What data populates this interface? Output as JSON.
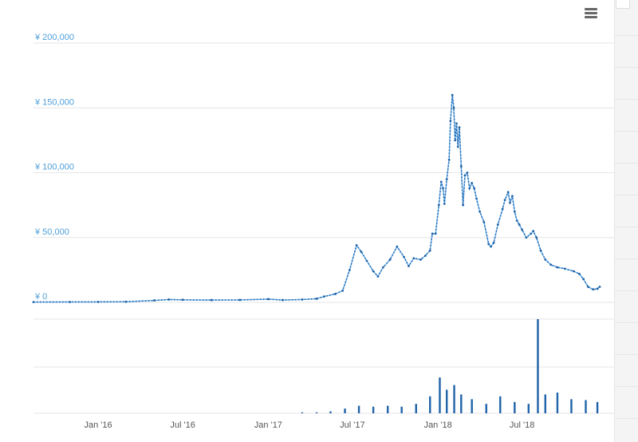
{
  "colors": {
    "line": "#1f63a8",
    "line_light": "#6aaee8",
    "volume": "#1f63a8",
    "grid": "#e6e6e6",
    "ylabel": "#4e9fd8",
    "xlabel": "#555555"
  },
  "icons": {
    "menu": "hamburger-menu-icon"
  },
  "chart_data": [
    {
      "type": "line",
      "title": "",
      "y_axis": {
        "ticks": [
          "¥ 0",
          "¥ 50,000",
          "¥ 100,000",
          "¥ 150,000",
          "¥ 200,000"
        ],
        "tick_values": [
          0,
          50000,
          100000,
          150000,
          200000
        ],
        "ylim": [
          0,
          200000
        ]
      },
      "x_axis": {
        "ticks": [
          "Jan '16",
          "Jul '16",
          "Jan '17",
          "Jul '17",
          "Jan '18",
          "Jul '18"
        ],
        "tick_dates": [
          "2016-01-01",
          "2016-07-01",
          "2017-01-01",
          "2017-07-01",
          "2018-01-01",
          "2018-07-01"
        ],
        "xlim": [
          "2015-08-15",
          "2018-12-15"
        ]
      },
      "grid": true,
      "series": [
        {
          "points": [
            [
              "2015-08-15",
              250
            ],
            [
              "2015-11-01",
              300
            ],
            [
              "2016-01-01",
              400
            ],
            [
              "2016-03-01",
              500
            ],
            [
              "2016-05-01",
              1500
            ],
            [
              "2016-06-01",
              2200
            ],
            [
              "2016-07-01",
              2000
            ],
            [
              "2016-09-01",
              1800
            ],
            [
              "2016-11-01",
              1900
            ],
            [
              "2017-01-01",
              2500
            ],
            [
              "2017-02-01",
              1800
            ],
            [
              "2017-03-15",
              2200
            ],
            [
              "2017-04-15",
              2800
            ],
            [
              "2017-05-01",
              4500
            ],
            [
              "2017-05-25",
              6500
            ],
            [
              "2017-06-10",
              9000
            ],
            [
              "2017-06-25",
              25000
            ],
            [
              "2017-07-10",
              44000
            ],
            [
              "2017-07-20",
              39000
            ],
            [
              "2017-08-01",
              32000
            ],
            [
              "2017-08-15",
              24000
            ],
            [
              "2017-08-25",
              20000
            ],
            [
              "2017-09-05",
              27000
            ],
            [
              "2017-09-20",
              33000
            ],
            [
              "2017-10-05",
              43000
            ],
            [
              "2017-10-20",
              35000
            ],
            [
              "2017-10-30",
              28000
            ],
            [
              "2017-11-10",
              34000
            ],
            [
              "2017-11-25",
              33000
            ],
            [
              "2017-12-05",
              36000
            ],
            [
              "2017-12-15",
              40000
            ],
            [
              "2017-12-20",
              53000
            ],
            [
              "2017-12-27",
              53000
            ],
            [
              "2018-01-03",
              75000
            ],
            [
              "2018-01-08",
              93000
            ],
            [
              "2018-01-12",
              88000
            ],
            [
              "2018-01-15",
              76000
            ],
            [
              "2018-01-20",
              95000
            ],
            [
              "2018-01-25",
              110000
            ],
            [
              "2018-01-28",
              140000
            ],
            [
              "2018-02-01",
              160000
            ],
            [
              "2018-02-04",
              150000
            ],
            [
              "2018-02-07",
              125000
            ],
            [
              "2018-02-10",
              138000
            ],
            [
              "2018-02-13",
              120000
            ],
            [
              "2018-02-16",
              135000
            ],
            [
              "2018-02-20",
              105000
            ],
            [
              "2018-02-24",
              75000
            ],
            [
              "2018-02-28",
              98000
            ],
            [
              "2018-03-05",
              100000
            ],
            [
              "2018-03-10",
              88000
            ],
            [
              "2018-03-15",
              92000
            ],
            [
              "2018-03-20",
              88000
            ],
            [
              "2018-03-25",
              80000
            ],
            [
              "2018-04-01",
              70000
            ],
            [
              "2018-04-10",
              62000
            ],
            [
              "2018-04-20",
              45000
            ],
            [
              "2018-04-25",
              43000
            ],
            [
              "2018-05-01",
              46000
            ],
            [
              "2018-05-10",
              60000
            ],
            [
              "2018-05-20",
              72000
            ],
            [
              "2018-05-25",
              79000
            ],
            [
              "2018-06-01",
              85000
            ],
            [
              "2018-06-05",
              77000
            ],
            [
              "2018-06-10",
              82000
            ],
            [
              "2018-06-15",
              70000
            ],
            [
              "2018-06-20",
              63000
            ],
            [
              "2018-06-25",
              60000
            ],
            [
              "2018-07-01",
              56000
            ],
            [
              "2018-07-10",
              50000
            ],
            [
              "2018-07-20",
              53000
            ],
            [
              "2018-07-25",
              55000
            ],
            [
              "2018-08-01",
              50000
            ],
            [
              "2018-08-10",
              40000
            ],
            [
              "2018-08-20",
              33000
            ],
            [
              "2018-09-01",
              29000
            ],
            [
              "2018-09-15",
              27000
            ],
            [
              "2018-10-01",
              26000
            ],
            [
              "2018-10-20",
              24000
            ],
            [
              "2018-11-01",
              22000
            ],
            [
              "2018-11-10",
              18000
            ],
            [
              "2018-11-20",
              12000
            ],
            [
              "2018-12-01",
              10000
            ],
            [
              "2018-12-10",
              10500
            ],
            [
              "2018-12-15",
              12000
            ]
          ]
        }
      ]
    },
    {
      "type": "bar",
      "title": "",
      "grid": true,
      "x_axis": {
        "xlim": [
          "2015-08-15",
          "2018-12-15"
        ]
      },
      "ylim": [
        0,
        100
      ],
      "series": [
        {
          "points": [
            [
              "2017-03-15",
              1
            ],
            [
              "2017-04-15",
              1
            ],
            [
              "2017-05-15",
              2
            ],
            [
              "2017-06-15",
              5
            ],
            [
              "2017-07-15",
              8
            ],
            [
              "2017-08-15",
              7
            ],
            [
              "2017-09-15",
              8
            ],
            [
              "2017-10-15",
              7
            ],
            [
              "2017-11-15",
              10
            ],
            [
              "2017-12-15",
              18
            ],
            [
              "2018-01-05",
              38
            ],
            [
              "2018-01-20",
              25
            ],
            [
              "2018-02-05",
              30
            ],
            [
              "2018-02-20",
              20
            ],
            [
              "2018-03-15",
              15
            ],
            [
              "2018-04-15",
              10
            ],
            [
              "2018-05-15",
              18
            ],
            [
              "2018-06-15",
              12
            ],
            [
              "2018-07-15",
              10
            ],
            [
              "2018-08-04",
              100
            ],
            [
              "2018-08-20",
              20
            ],
            [
              "2018-09-15",
              22
            ],
            [
              "2018-10-15",
              15
            ],
            [
              "2018-11-15",
              14
            ],
            [
              "2018-12-10",
              12
            ]
          ]
        }
      ]
    }
  ]
}
